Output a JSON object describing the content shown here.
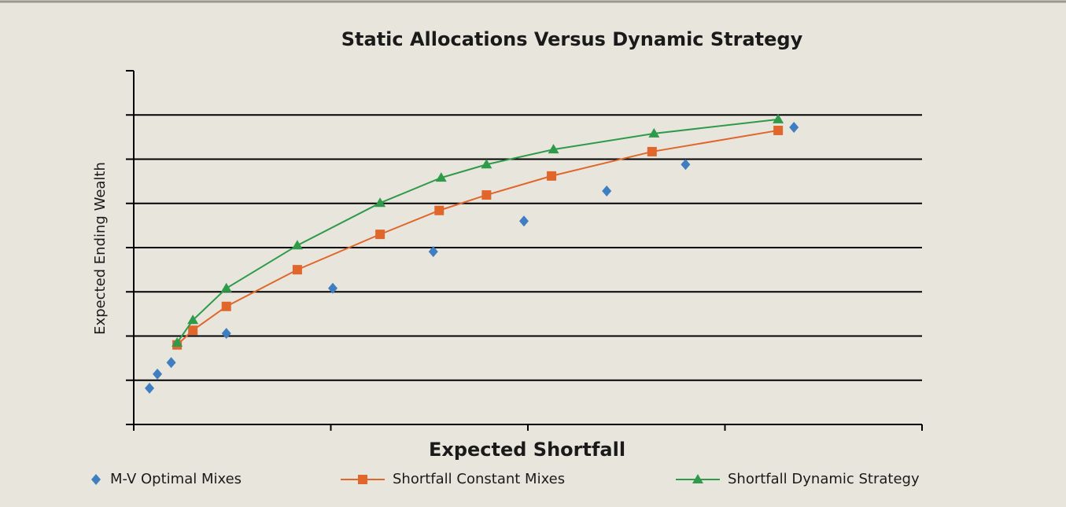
{
  "chart_data": {
    "type": "scatter",
    "title": "Static Allocations Versus Dynamic Strategy",
    "x_label": "Expected Shortfall",
    "y_label": "Expected Ending Wealth",
    "xlim": [
      0,
      4
    ],
    "ylim": [
      0,
      8
    ],
    "xticks": [
      0,
      1,
      2,
      3,
      4
    ],
    "yticks": [
      0,
      1,
      2,
      3,
      4,
      5,
      6,
      7,
      8
    ],
    "grid": true,
    "legend": "bottom",
    "series": [
      {
        "name": "M-V Optimal Mixes",
        "color": "#3f7fc1",
        "marker": "diamond",
        "line": false,
        "x": [
          0.08,
          0.12,
          0.19,
          0.47,
          1.01,
          1.52,
          1.98,
          2.4,
          2.8,
          3.35
        ],
        "values": [
          0.82,
          1.14,
          1.4,
          2.06,
          3.08,
          3.91,
          4.6,
          5.28,
          5.88,
          6.72
        ]
      },
      {
        "name": "Shortfall Constant Mixes",
        "color": "#e0662c",
        "marker": "square",
        "line": true,
        "x": [
          0.22,
          0.3,
          0.47,
          0.83,
          1.25,
          1.55,
          1.79,
          2.12,
          2.63,
          3.27
        ],
        "values": [
          1.8,
          2.13,
          2.67,
          3.5,
          4.3,
          4.84,
          5.19,
          5.62,
          6.17,
          6.65
        ]
      },
      {
        "name": "Shortfall Dynamic Strategy",
        "color": "#2e9a4a",
        "marker": "triangle",
        "line": true,
        "x": [
          0.22,
          0.3,
          0.47,
          0.83,
          1.25,
          1.56,
          1.79,
          2.13,
          2.64,
          3.27
        ],
        "values": [
          1.85,
          2.36,
          3.08,
          4.05,
          5.01,
          5.58,
          5.88,
          6.22,
          6.58,
          6.9
        ]
      }
    ]
  }
}
